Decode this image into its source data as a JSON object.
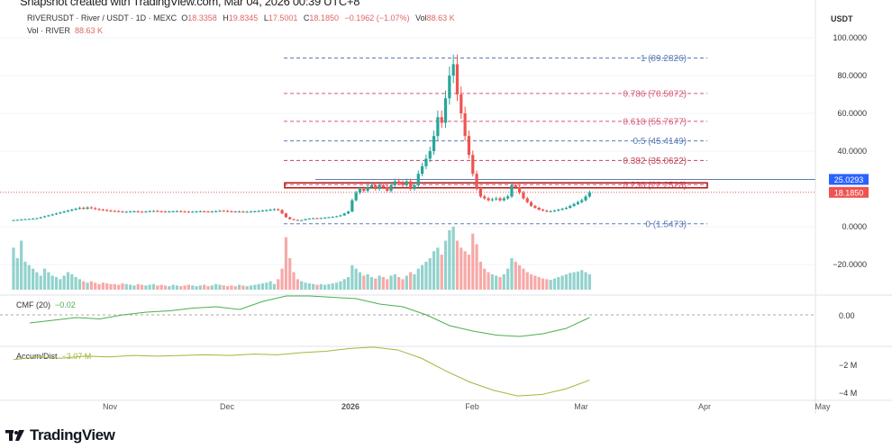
{
  "snapshot_caption": "Snapshot created with TradingView.com, Mar 04, 2026 00:39 UTC+8",
  "legend": {
    "symbol": "RIVERUSDT · River / USDT · 1D · MEXC",
    "o_label": "O",
    "open": "18.3358",
    "h_label": "H",
    "high": "19.8345",
    "l_label": "L",
    "low": "17.5001",
    "c_label": "C",
    "close": "18.1850",
    "change": "−0.1962 (−1.07%)",
    "vol_label": "Vol",
    "vol": "88.63 K",
    "vol2_label": "Vol · RIVER",
    "vol2": "88.63 K"
  },
  "indicators": {
    "cmf_label": "CMF (20)",
    "cmf_value": "−0.02",
    "ad_label": "Accum/Dist",
    "ad_value": "−3.07 M"
  },
  "price_axis": {
    "unit": "USDT",
    "ticks": [
      "100.0000",
      "80.0000",
      "60.0000",
      "40.0000",
      "0.0000",
      "−20.0000"
    ],
    "tick_values": [
      100,
      80,
      60,
      40,
      0,
      -20
    ],
    "hline_label": "25.0293",
    "hline_value": 25.0293,
    "last_price_label": "18.1850",
    "last_price": 18.185
  },
  "cmf_axis": {
    "ticks": [
      "0.00"
    ]
  },
  "ad_axis": {
    "ticks": [
      "−2 M",
      "−4 M"
    ]
  },
  "time_axis": [
    "Nov",
    "Dec",
    "2026",
    "Feb",
    "Mar",
    "Apr",
    "May"
  ],
  "fib_levels": [
    {
      "label": "1 (89.2826)",
      "value": 89.2826,
      "color": "#5b7bb5"
    },
    {
      "label": "0.786 (70.5072)",
      "value": 70.5072,
      "color": "#d45a7a"
    },
    {
      "label": "0.618 (55.7677)",
      "value": 55.7677,
      "color": "#d45a7a"
    },
    {
      "label": "0.5 (45.4149)",
      "value": 45.4149,
      "color": "#5b7bb5"
    },
    {
      "label": "0.382 (35.0622)",
      "value": 35.0622,
      "color": "#c2445a"
    },
    {
      "label": "0.236 (22.2528)",
      "value": 22.2528,
      "color": "#d45a7a"
    },
    {
      "label": "0 (1.5473)",
      "value": 1.5473,
      "color": "#5b7bb5"
    }
  ],
  "colors": {
    "up": "#26a69a",
    "down": "#ef5350",
    "hline": "#2962ff",
    "zone": "#b71c1c",
    "cmf": "#4caf50",
    "ad": "#a8b43c"
  },
  "brand": "TradingView",
  "chart_data": {
    "type": "candlestick",
    "start": "Oct 6",
    "end": "Mar 3",
    "closes": [
      3.5,
      3.6,
      3.8,
      4,
      4.1,
      4.3,
      4.5,
      5,
      5.5,
      6,
      6.5,
      7,
      7.5,
      8,
      8.5,
      9,
      9.5,
      10,
      9.5,
      10.2,
      9.8,
      9.3,
      9,
      8.8,
      8.5,
      8.3,
      8.2,
      8,
      7.8,
      7.9,
      8,
      8.1,
      7.9,
      7.8,
      8,
      8.2,
      8.3,
      8.1,
      8,
      7.9,
      8,
      8.1,
      8.2,
      8,
      7.9,
      7.8,
      7.9,
      8,
      8.1,
      8,
      7.9,
      8,
      8.2,
      8.4,
      8.3,
      8.1,
      8,
      7.9,
      8,
      7.8,
      7.9,
      8,
      8.1,
      8.3,
      8.5,
      8.7,
      9,
      9.2,
      8.8,
      7,
      5,
      4,
      3.6,
      3.3,
      3.5,
      4,
      4.3,
      4.5,
      4.4,
      4.6,
      4.8,
      5,
      5.2,
      5.5,
      6,
      7,
      8,
      14,
      18,
      20,
      19,
      21,
      22,
      20,
      22,
      21,
      19,
      22,
      24,
      23,
      22,
      24,
      20,
      22,
      28,
      32,
      36,
      40,
      48,
      58,
      55,
      68,
      80,
      86,
      70,
      60,
      48,
      38,
      28,
      20,
      16,
      15,
      14,
      14.5,
      15,
      14,
      15,
      16,
      22,
      21,
      18,
      15,
      13,
      11,
      10,
      9,
      8.5,
      8,
      8.2,
      8.5,
      9,
      9.5,
      10,
      11,
      12,
      13,
      14,
      16,
      18.185
    ],
    "volume": [
      60,
      45,
      70,
      40,
      35,
      30,
      25,
      20,
      30,
      25,
      20,
      18,
      15,
      20,
      25,
      22,
      18,
      15,
      12,
      10,
      12,
      10,
      8,
      10,
      9,
      8,
      8,
      7,
      9,
      8,
      7,
      6,
      8,
      7,
      6,
      7,
      8,
      6,
      7,
      6,
      5,
      7,
      6,
      5,
      6,
      7,
      6,
      5,
      6,
      7,
      5,
      6,
      8,
      7,
      6,
      5,
      6,
      5,
      7,
      6,
      5,
      6,
      7,
      8,
      9,
      10,
      12,
      8,
      15,
      30,
      75,
      45,
      25,
      15,
      12,
      10,
      9,
      8,
      7,
      8,
      7,
      8,
      9,
      10,
      12,
      15,
      18,
      35,
      30,
      25,
      20,
      22,
      18,
      16,
      20,
      18,
      15,
      20,
      22,
      18,
      15,
      20,
      25,
      22,
      30,
      35,
      40,
      45,
      55,
      60,
      50,
      70,
      85,
      90,
      70,
      60,
      55,
      50,
      80,
      65,
      40,
      30,
      25,
      22,
      20,
      18,
      22,
      30,
      45,
      40,
      35,
      30,
      25,
      22,
      20,
      18,
      16,
      15,
      14,
      16,
      18,
      20,
      22,
      24,
      25,
      26,
      28,
      25,
      22
    ],
    "cmf": [
      -0.06,
      -0.04,
      -0.02,
      -0.03,
      0.0,
      0.02,
      0.03,
      0.05,
      0.06,
      0.04,
      0.1,
      0.14,
      0.14,
      0.13,
      0.12,
      0.08,
      0.06,
      0.0,
      -0.08,
      -0.12,
      -0.15,
      -0.16,
      -0.14,
      -0.1,
      -0.02
    ],
    "accum_dist_millions": [
      -1.6,
      -1.4,
      -1.5,
      -1.35,
      -1.4,
      -1.3,
      -1.35,
      -1.3,
      -1.25,
      -1.3,
      -1.2,
      -1.25,
      -1.1,
      -1.0,
      -0.8,
      -0.7,
      -0.9,
      -1.5,
      -2.4,
      -3.2,
      -3.8,
      -4.2,
      -4.1,
      -3.7,
      -3.07
    ],
    "ylim": [
      -20,
      100
    ]
  }
}
